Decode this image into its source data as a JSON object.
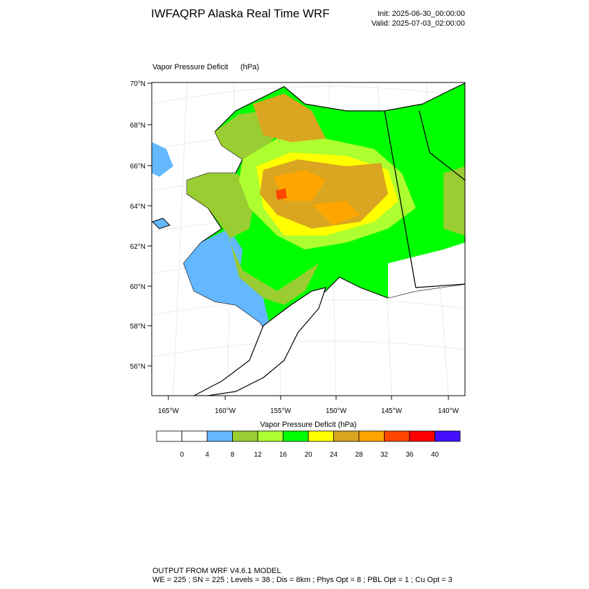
{
  "header": {
    "title": "IWFAQRP Alaska Real Time WRF",
    "init": "Init: 2025-06-30_00:00:00",
    "valid": "Valid: 2025-07-03_02:00:00"
  },
  "map": {
    "field": "Vapor Pressure Deficit",
    "units": "(hPa)",
    "lat_labels": [
      "70°N",
      "68°N",
      "66°N",
      "64°N",
      "62°N",
      "60°N",
      "58°N",
      "56°N"
    ],
    "lon_labels": [
      "165°W",
      "160°W",
      "155°W",
      "150°W",
      "145°W",
      "140°W"
    ]
  },
  "colorbar": {
    "title": "Vapor Pressure Deficit  (hPa)",
    "colors": [
      "#ffffff",
      "#ffffff",
      "#63b8ff",
      "#9acd32",
      "#adff2f",
      "#00ff00",
      "#ffff00",
      "#daa520",
      "#ffa500",
      "#ff4500",
      "#ff0000",
      "#4410ff"
    ],
    "levels": [
      0,
      4,
      8,
      12,
      16,
      20,
      24,
      28,
      32,
      36,
      40
    ]
  },
  "footer": {
    "line1": "OUTPUT FROM WRF V4.6.1 MODEL",
    "line2": "WE = 225 ; SN = 225 ; Levels = 38 ; Dis = 8km ; Phys Opt = 8 ; PBL Opt = 1 ; Cu Opt = 3"
  }
}
